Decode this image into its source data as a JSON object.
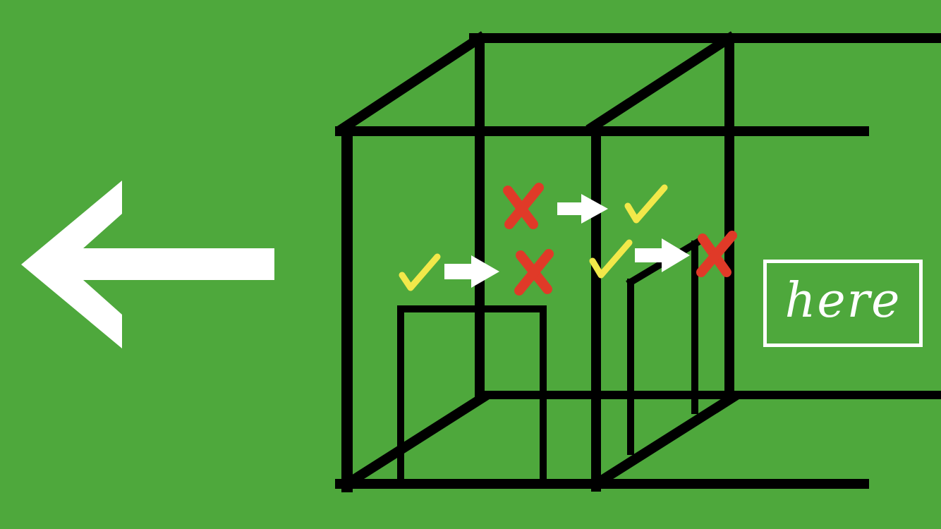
{
  "colors": {
    "background": "#4ea83c",
    "lines": "#000000",
    "arrow": "#ffffff",
    "check": "#f2e84a",
    "cross": "#e03a28"
  },
  "icons": {
    "back": "left-arrow-icon",
    "check": "check-mark-icon",
    "cross": "x-mark-icon",
    "step": "right-arrow-icon"
  },
  "here_button": {
    "label": "here"
  }
}
